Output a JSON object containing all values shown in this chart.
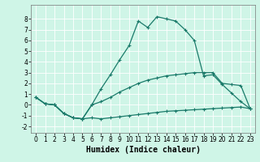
{
  "xlabel": "Humidex (Indice chaleur)",
  "bg_color": "#cff5e7",
  "grid_color": "#ffffff",
  "line_color": "#1a7a6a",
  "xlim": [
    -0.5,
    23.5
  ],
  "ylim": [
    -2.6,
    9.3
  ],
  "xticks": [
    0,
    1,
    2,
    3,
    4,
    5,
    6,
    7,
    8,
    9,
    10,
    11,
    12,
    13,
    14,
    15,
    16,
    17,
    18,
    19,
    20,
    21,
    22,
    23
  ],
  "yticks": [
    -2,
    -1,
    0,
    1,
    2,
    3,
    4,
    5,
    6,
    7,
    8
  ],
  "line1_x": [
    0,
    1,
    2,
    3,
    4,
    5,
    6,
    7,
    8,
    9,
    10,
    11,
    12,
    13,
    14,
    15,
    16,
    17,
    18,
    19,
    20,
    21,
    22,
    23
  ],
  "line1_y": [
    0.7,
    0.1,
    0.0,
    -0.8,
    -1.2,
    -1.3,
    -1.2,
    -1.3,
    -1.2,
    -1.1,
    -1.0,
    -0.9,
    -0.8,
    -0.7,
    -0.6,
    -0.55,
    -0.5,
    -0.45,
    -0.4,
    -0.35,
    -0.3,
    -0.25,
    -0.2,
    -0.35
  ],
  "line2_x": [
    0,
    1,
    2,
    3,
    4,
    5,
    6,
    7,
    8,
    9,
    10,
    11,
    12,
    13,
    14,
    15,
    16,
    17,
    18,
    19,
    20,
    21,
    22,
    23
  ],
  "line2_y": [
    0.7,
    0.1,
    0.0,
    -0.8,
    -1.2,
    -1.3,
    0.0,
    0.3,
    0.7,
    1.2,
    1.6,
    2.0,
    2.3,
    2.5,
    2.7,
    2.8,
    2.9,
    3.0,
    3.0,
    3.0,
    2.0,
    1.9,
    1.8,
    -0.35
  ],
  "line3_x": [
    0,
    1,
    2,
    3,
    4,
    5,
    6,
    7,
    8,
    9,
    10,
    11,
    12,
    13,
    14,
    15,
    16,
    17,
    18,
    19,
    20,
    21,
    22,
    23
  ],
  "line3_y": [
    0.7,
    0.1,
    0.0,
    -0.8,
    -1.2,
    -1.3,
    0.0,
    1.5,
    2.8,
    4.2,
    5.5,
    7.8,
    7.2,
    8.2,
    8.0,
    7.8,
    7.0,
    6.0,
    2.7,
    2.8,
    1.9,
    1.1,
    0.3,
    -0.35
  ],
  "marker_size": 2.5,
  "linewidth": 0.9,
  "tick_fontsize": 5.5,
  "xlabel_fontsize": 7
}
